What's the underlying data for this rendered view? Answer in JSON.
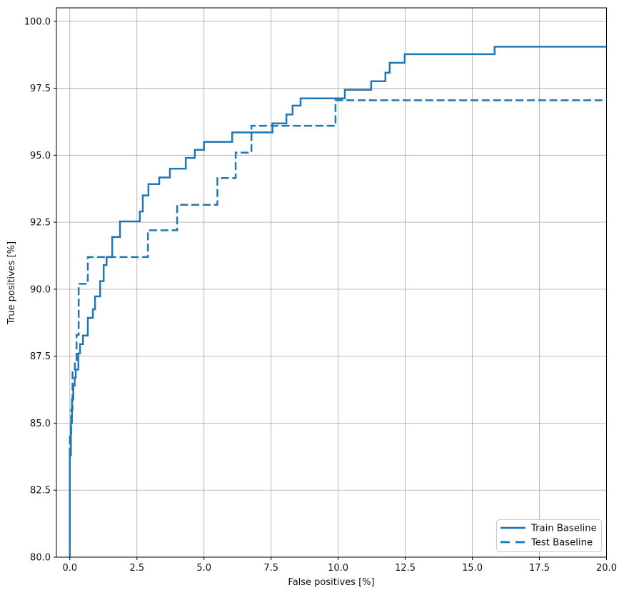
{
  "chart_data": {
    "type": "line",
    "step": true,
    "title": "",
    "xlabel": "False positives [%]",
    "ylabel": "True positives [%]",
    "xlim": [
      -0.5,
      20
    ],
    "ylim": [
      80,
      100.5
    ],
    "grid": true,
    "grid_color": "#b0b0b0",
    "spine_color": "#000000",
    "line_color": "#1f77b4",
    "x_ticks": [
      0,
      2.5,
      5,
      7.5,
      10,
      12.5,
      15,
      17.5,
      20
    ],
    "x_tick_labels": [
      "0.0",
      "2.5",
      "5.0",
      "7.5",
      "10.0",
      "12.5",
      "15.0",
      "17.5",
      "20.0"
    ],
    "y_ticks": [
      80,
      82.5,
      85,
      87.5,
      90,
      92.5,
      95,
      97.5,
      100
    ],
    "y_tick_labels": [
      "80.0",
      "82.5",
      "85.0",
      "87.5",
      "90.0",
      "92.5",
      "95.0",
      "97.5",
      "100.0"
    ],
    "legend_position": "lower right",
    "series": [
      {
        "name": "Train Baseline",
        "style": "solid",
        "points": [
          [
            0.0,
            80.0
          ],
          [
            0.0,
            83.8
          ],
          [
            0.04,
            83.8
          ],
          [
            0.04,
            85.0
          ],
          [
            0.08,
            85.0
          ],
          [
            0.08,
            85.9
          ],
          [
            0.13,
            85.9
          ],
          [
            0.13,
            86.4
          ],
          [
            0.18,
            86.4
          ],
          [
            0.18,
            86.7
          ],
          [
            0.22,
            86.7
          ],
          [
            0.22,
            87.0
          ],
          [
            0.32,
            87.0
          ],
          [
            0.32,
            87.6
          ],
          [
            0.38,
            87.6
          ],
          [
            0.38,
            87.95
          ],
          [
            0.49,
            87.95
          ],
          [
            0.49,
            88.27
          ],
          [
            0.67,
            88.27
          ],
          [
            0.67,
            88.93
          ],
          [
            0.86,
            88.93
          ],
          [
            0.86,
            89.25
          ],
          [
            0.94,
            89.25
          ],
          [
            0.94,
            89.73
          ],
          [
            1.13,
            89.73
          ],
          [
            1.13,
            90.3
          ],
          [
            1.26,
            90.3
          ],
          [
            1.26,
            90.9
          ],
          [
            1.37,
            90.9
          ],
          [
            1.37,
            91.2
          ],
          [
            1.58,
            91.2
          ],
          [
            1.58,
            91.95
          ],
          [
            1.87,
            91.95
          ],
          [
            1.87,
            92.53
          ],
          [
            2.61,
            92.53
          ],
          [
            2.61,
            92.9
          ],
          [
            2.72,
            92.9
          ],
          [
            2.72,
            93.5
          ],
          [
            2.93,
            93.5
          ],
          [
            2.93,
            93.92
          ],
          [
            3.33,
            93.92
          ],
          [
            3.33,
            94.17
          ],
          [
            3.73,
            94.17
          ],
          [
            3.73,
            94.5
          ],
          [
            4.32,
            94.5
          ],
          [
            4.32,
            94.9
          ],
          [
            4.66,
            94.9
          ],
          [
            4.66,
            95.2
          ],
          [
            5.0,
            95.2
          ],
          [
            5.0,
            95.5
          ],
          [
            6.05,
            95.5
          ],
          [
            6.05,
            95.85
          ],
          [
            7.55,
            95.85
          ],
          [
            7.55,
            96.19
          ],
          [
            8.07,
            96.19
          ],
          [
            8.07,
            96.52
          ],
          [
            8.3,
            96.52
          ],
          [
            8.3,
            96.85
          ],
          [
            8.6,
            96.85
          ],
          [
            8.6,
            97.12
          ],
          [
            10.25,
            97.12
          ],
          [
            10.25,
            97.44
          ],
          [
            11.23,
            97.44
          ],
          [
            11.23,
            97.76
          ],
          [
            11.76,
            97.76
          ],
          [
            11.76,
            98.08
          ],
          [
            11.92,
            98.08
          ],
          [
            11.92,
            98.45
          ],
          [
            12.48,
            98.45
          ],
          [
            12.48,
            98.77
          ],
          [
            15.83,
            98.77
          ],
          [
            15.83,
            99.05
          ],
          [
            20.0,
            99.05
          ]
        ]
      },
      {
        "name": "Test Baseline",
        "style": "dashed",
        "points": [
          [
            0.0,
            80.0
          ],
          [
            0.0,
            84.5
          ],
          [
            0.05,
            84.5
          ],
          [
            0.05,
            85.5
          ],
          [
            0.1,
            85.5
          ],
          [
            0.1,
            86.9
          ],
          [
            0.19,
            86.9
          ],
          [
            0.19,
            87.3
          ],
          [
            0.25,
            87.3
          ],
          [
            0.25,
            88.3
          ],
          [
            0.33,
            88.3
          ],
          [
            0.33,
            90.2
          ],
          [
            0.67,
            90.2
          ],
          [
            0.67,
            91.2
          ],
          [
            2.91,
            91.2
          ],
          [
            2.91,
            92.2
          ],
          [
            4.0,
            92.2
          ],
          [
            4.0,
            93.15
          ],
          [
            5.5,
            93.15
          ],
          [
            5.5,
            94.15
          ],
          [
            6.18,
            94.15
          ],
          [
            6.18,
            95.1
          ],
          [
            6.77,
            95.1
          ],
          [
            6.77,
            96.1
          ],
          [
            9.9,
            96.1
          ],
          [
            9.9,
            97.05
          ],
          [
            20.0,
            97.05
          ]
        ]
      }
    ]
  }
}
